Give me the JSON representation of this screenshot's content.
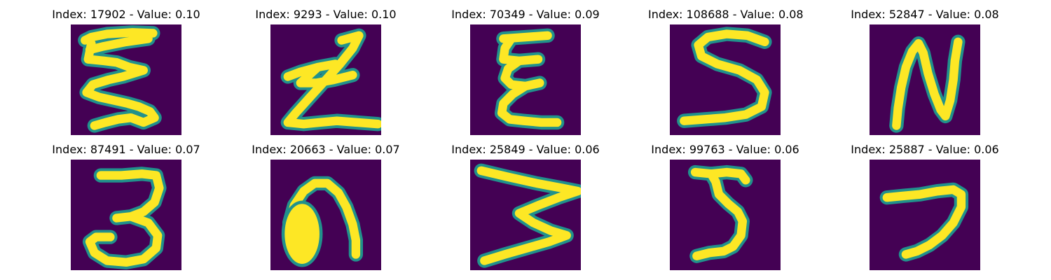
{
  "chart_data": {
    "type": "image_grid",
    "colors": {
      "background": "#440154",
      "mid": "#21918c",
      "stroke": "#fde725"
    },
    "panels": [
      {
        "index": 17902,
        "value": 0.1,
        "title": "Index: 17902 - Value: 0.10",
        "glyph": "jagged-zigzag-E"
      },
      {
        "index": 9293,
        "value": 0.1,
        "title": "Index: 9293 - Value: 0.10",
        "glyph": "zigzag-Z"
      },
      {
        "index": 70349,
        "value": 0.09,
        "title": "Index: 70349 - Value: 0.09",
        "glyph": "curly-E"
      },
      {
        "index": 108688,
        "value": 0.08,
        "title": "Index: 108688 - Value: 0.08",
        "glyph": "S-shape"
      },
      {
        "index": 52847,
        "value": 0.08,
        "title": "Index: 52847 - Value: 0.08",
        "glyph": "N-shape"
      },
      {
        "index": 87491,
        "value": 0.07,
        "title": "Index: 87491 - Value: 0.07",
        "glyph": "3-shape"
      },
      {
        "index": 20663,
        "value": 0.07,
        "title": "Index: 20663 - Value: 0.07",
        "glyph": "arch-n-shape"
      },
      {
        "index": 25849,
        "value": 0.06,
        "title": "Index: 25849 - Value: 0.06",
        "glyph": "sideways-W"
      },
      {
        "index": 99763,
        "value": 0.06,
        "title": "Index: 99763 - Value: 0.06",
        "glyph": "3-shape-narrow"
      },
      {
        "index": 25887,
        "value": 0.06,
        "title": "Index: 25887 - Value: 0.06",
        "glyph": "hook-7-shape"
      }
    ]
  }
}
